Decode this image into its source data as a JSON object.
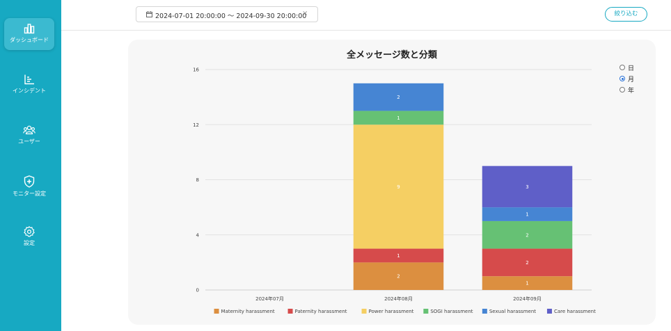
{
  "sidebar": {
    "items": [
      {
        "label": "ダッシュボード",
        "icon": "bar-chart-icon",
        "active": true
      },
      {
        "label": "インシデント",
        "icon": "list-chart-icon",
        "active": false
      },
      {
        "label": "ユーザー",
        "icon": "users-icon",
        "active": false
      },
      {
        "label": "モニター設定",
        "icon": "shield-plus-icon",
        "active": false
      },
      {
        "label": "設定",
        "icon": "gear-icon",
        "active": false
      }
    ],
    "color": "#17a9c2"
  },
  "header": {
    "date_range": "2024-07-01 20:00:00 〜 2024-09-30 20:00:00",
    "clear_label": "×",
    "filter_label": "絞り込む"
  },
  "period_toggle": {
    "options": [
      "日",
      "月",
      "年"
    ],
    "selected": "月"
  },
  "chart_data": {
    "type": "bar",
    "stacked": true,
    "title": "全メッセージ数と分類",
    "categories": [
      "2024年07月",
      "2024年08月",
      "2024年09月"
    ],
    "series": [
      {
        "name": "Maternity harassment",
        "color": "#dc8f40",
        "values": [
          0,
          2,
          1
        ]
      },
      {
        "name": "Paternity harassment",
        "color": "#d64b4b",
        "values": [
          0,
          1,
          2
        ]
      },
      {
        "name": "Power harassment",
        "color": "#f5cf63",
        "values": [
          0,
          9,
          0
        ]
      },
      {
        "name": "SOGI harassment",
        "color": "#66c174",
        "values": [
          0,
          1,
          2
        ]
      },
      {
        "name": "Sexual harassment",
        "color": "#4685d3",
        "values": [
          0,
          2,
          1
        ]
      },
      {
        "name": "Care harassment",
        "color": "#5f5fc8",
        "values": [
          0,
          0,
          3
        ]
      }
    ],
    "ylim": [
      0,
      16
    ],
    "yticks": [
      0,
      4,
      8,
      12,
      16
    ],
    "grid": true,
    "legend": "bottom"
  }
}
